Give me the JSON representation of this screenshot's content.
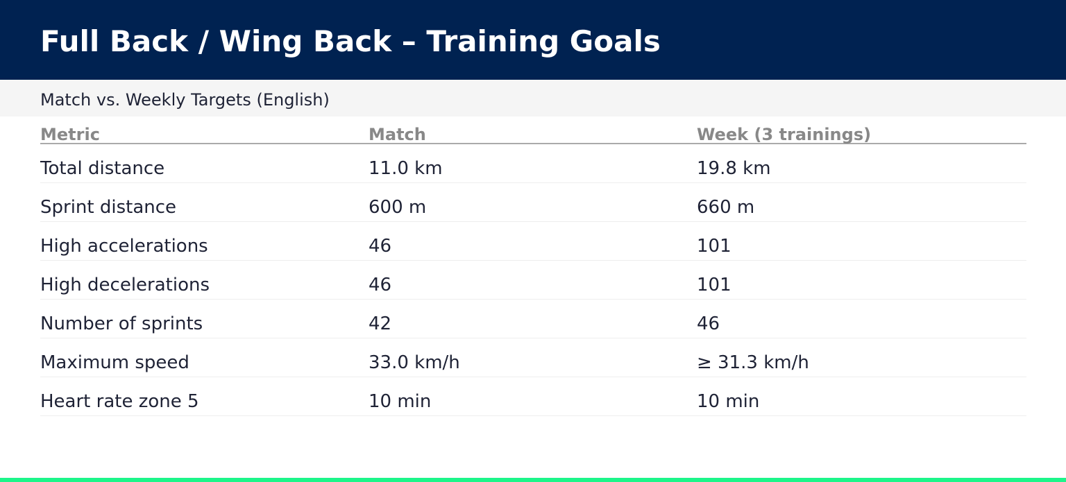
{
  "header": {
    "title": "Full Back / Wing Back – Training Goals",
    "background_color": "#002251"
  },
  "subheader": {
    "text": "Match vs. Weekly Targets (English)"
  },
  "table": {
    "columns": [
      "Metric",
      "Match",
      "Week (3 trainings)"
    ],
    "rows": [
      [
        "Total distance",
        "11.0 km",
        "19.8 km"
      ],
      [
        "Sprint distance",
        "600 m",
        "660 m"
      ],
      [
        "High accelerations",
        "46",
        "101"
      ],
      [
        "High decelerations",
        "46",
        "101"
      ],
      [
        "Number of sprints",
        "42",
        "46"
      ],
      [
        "Maximum speed",
        "33.0 km/h",
        "≥ 31.3 km/h"
      ],
      [
        "Heart rate zone 5",
        "10 min",
        "10 min"
      ]
    ]
  },
  "accent_color": "#1df58a"
}
